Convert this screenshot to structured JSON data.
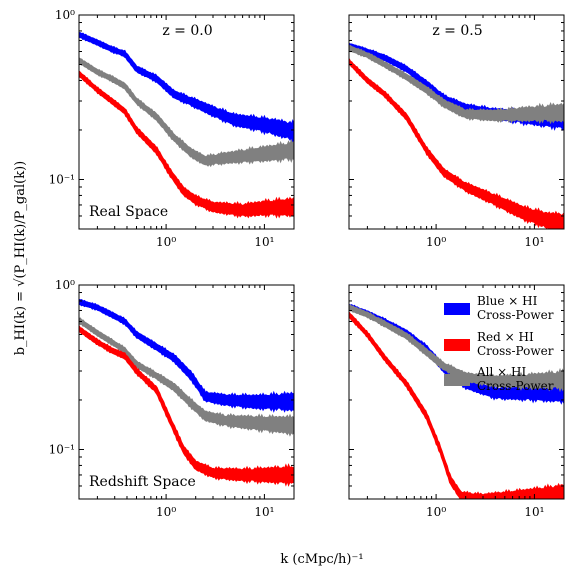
{
  "figure": {
    "ylabel": "b_HI(k) = √(P_HI(k)/P_gal(k))",
    "xlabel": "k (cMpc/h)⁻¹"
  },
  "chart_data": [
    {
      "type": "line",
      "panel_title": "z = 0.0",
      "panel_note": "Real Space",
      "xscale": "log",
      "yscale": "log",
      "xlim": [
        0.13,
        20
      ],
      "ylim": [
        0.05,
        1.0
      ],
      "x_tick_labels": [
        "10⁰",
        "10¹"
      ],
      "y_tick_labels": [
        "10⁰",
        "10⁻¹"
      ],
      "series": [
        {
          "color": "#0000ff",
          "points": [
            [
              0.13,
              0.76
            ],
            [
              0.2,
              0.68
            ],
            [
              0.28,
              0.62
            ],
            [
              0.38,
              0.58
            ],
            [
              0.5,
              0.47
            ],
            [
              0.8,
              0.41
            ],
            [
              1.2,
              0.33
            ],
            [
              2,
              0.29
            ],
            [
              3,
              0.26
            ],
            [
              5,
              0.23
            ],
            [
              8,
              0.22
            ],
            [
              12,
              0.21
            ],
            [
              20,
              0.195
            ]
          ]
        },
        {
          "color": "#808080",
          "points": [
            [
              0.13,
              0.53
            ],
            [
              0.2,
              0.45
            ],
            [
              0.28,
              0.41
            ],
            [
              0.38,
              0.37
            ],
            [
              0.5,
              0.3
            ],
            [
              0.8,
              0.24
            ],
            [
              1.2,
              0.18
            ],
            [
              1.8,
              0.145
            ],
            [
              2.5,
              0.13
            ],
            [
              4,
              0.135
            ],
            [
              7,
              0.14
            ],
            [
              12,
              0.145
            ],
            [
              20,
              0.15
            ]
          ]
        },
        {
          "color": "#ff0000",
          "points": [
            [
              0.13,
              0.44
            ],
            [
              0.2,
              0.35
            ],
            [
              0.28,
              0.3
            ],
            [
              0.38,
              0.26
            ],
            [
              0.5,
              0.2
            ],
            [
              0.8,
              0.15
            ],
            [
              1.1,
              0.11
            ],
            [
              1.5,
              0.085
            ],
            [
              2,
              0.075
            ],
            [
              3,
              0.068
            ],
            [
              6,
              0.065
            ],
            [
              10,
              0.067
            ],
            [
              20,
              0.068
            ]
          ]
        }
      ]
    },
    {
      "type": "line",
      "panel_title": "z = 0.5",
      "panel_note": "",
      "xscale": "log",
      "yscale": "log",
      "xlim": [
        0.13,
        20
      ],
      "ylim": [
        0.05,
        1.0
      ],
      "x_tick_labels": [
        "10⁰",
        "10¹"
      ],
      "y_tick_labels": [],
      "series": [
        {
          "color": "#0000ff",
          "points": [
            [
              0.13,
              0.65
            ],
            [
              0.2,
              0.6
            ],
            [
              0.3,
              0.55
            ],
            [
              0.5,
              0.47
            ],
            [
              0.8,
              0.38
            ],
            [
              1.2,
              0.31
            ],
            [
              2,
              0.27
            ],
            [
              4,
              0.25
            ],
            [
              8,
              0.24
            ],
            [
              20,
              0.23
            ]
          ]
        },
        {
          "color": "#808080",
          "points": [
            [
              0.13,
              0.63
            ],
            [
              0.2,
              0.57
            ],
            [
              0.3,
              0.5
            ],
            [
              0.5,
              0.42
            ],
            [
              0.8,
              0.35
            ],
            [
              1.2,
              0.29
            ],
            [
              2,
              0.25
            ],
            [
              4,
              0.245
            ],
            [
              8,
              0.25
            ],
            [
              20,
              0.255
            ]
          ]
        },
        {
          "color": "#ff0000",
          "points": [
            [
              0.13,
              0.52
            ],
            [
              0.2,
              0.4
            ],
            [
              0.3,
              0.33
            ],
            [
              0.5,
              0.24
            ],
            [
              0.8,
              0.15
            ],
            [
              1.2,
              0.11
            ],
            [
              2,
              0.09
            ],
            [
              4,
              0.075
            ],
            [
              8,
              0.062
            ],
            [
              14,
              0.056
            ],
            [
              20,
              0.055
            ]
          ]
        }
      ]
    },
    {
      "type": "line",
      "panel_title": "",
      "panel_note": "Redshift Space",
      "xscale": "log",
      "yscale": "log",
      "xlim": [
        0.13,
        20
      ],
      "ylim": [
        0.05,
        1.0
      ],
      "x_tick_labels": [
        "10⁰",
        "10¹"
      ],
      "y_tick_labels": [
        "10⁰",
        "10⁻¹"
      ],
      "series": [
        {
          "color": "#0000ff",
          "points": [
            [
              0.13,
              0.79
            ],
            [
              0.2,
              0.73
            ],
            [
              0.28,
              0.66
            ],
            [
              0.38,
              0.6
            ],
            [
              0.5,
              0.5
            ],
            [
              0.8,
              0.42
            ],
            [
              1.2,
              0.36
            ],
            [
              1.8,
              0.28
            ],
            [
              2.5,
              0.21
            ],
            [
              4,
              0.2
            ],
            [
              8,
              0.195
            ],
            [
              20,
              0.195
            ]
          ]
        },
        {
          "color": "#808080",
          "points": [
            [
              0.13,
              0.61
            ],
            [
              0.2,
              0.51
            ],
            [
              0.28,
              0.45
            ],
            [
              0.38,
              0.4
            ],
            [
              0.5,
              0.33
            ],
            [
              0.8,
              0.28
            ],
            [
              1.2,
              0.24
            ],
            [
              1.8,
              0.19
            ],
            [
              2.5,
              0.16
            ],
            [
              4,
              0.15
            ],
            [
              8,
              0.145
            ],
            [
              20,
              0.14
            ]
          ]
        },
        {
          "color": "#ff0000",
          "points": [
            [
              0.13,
              0.54
            ],
            [
              0.2,
              0.45
            ],
            [
              0.28,
              0.4
            ],
            [
              0.38,
              0.37
            ],
            [
              0.5,
              0.3
            ],
            [
              0.8,
              0.23
            ],
            [
              1.1,
              0.15
            ],
            [
              1.5,
              0.1
            ],
            [
              2,
              0.08
            ],
            [
              3,
              0.072
            ],
            [
              6,
              0.07
            ],
            [
              10,
              0.07
            ],
            [
              20,
              0.07
            ]
          ]
        }
      ]
    },
    {
      "type": "line",
      "panel_title": "",
      "panel_note": "",
      "xscale": "log",
      "yscale": "log",
      "xlim": [
        0.13,
        20
      ],
      "ylim": [
        0.05,
        1.0
      ],
      "x_tick_labels": [
        "10⁰",
        "10¹"
      ],
      "y_tick_labels": [],
      "series": [
        {
          "color": "#0000ff",
          "points": [
            [
              0.13,
              0.74
            ],
            [
              0.2,
              0.67
            ],
            [
              0.3,
              0.6
            ],
            [
              0.5,
              0.51
            ],
            [
              0.8,
              0.41
            ],
            [
              1.2,
              0.31
            ],
            [
              2,
              0.25
            ],
            [
              4,
              0.22
            ],
            [
              8,
              0.22
            ],
            [
              20,
              0.22
            ]
          ]
        },
        {
          "color": "#808080",
          "points": [
            [
              0.13,
              0.73
            ],
            [
              0.2,
              0.66
            ],
            [
              0.3,
              0.58
            ],
            [
              0.5,
              0.49
            ],
            [
              0.8,
              0.39
            ],
            [
              1.2,
              0.32
            ],
            [
              2,
              0.275
            ],
            [
              4,
              0.26
            ],
            [
              8,
              0.26
            ],
            [
              20,
              0.265
            ]
          ]
        },
        {
          "color": "#ff0000",
          "points": [
            [
              0.13,
              0.66
            ],
            [
              0.2,
              0.5
            ],
            [
              0.3,
              0.36
            ],
            [
              0.5,
              0.25
            ],
            [
              0.8,
              0.16
            ],
            [
              1.1,
              0.1
            ],
            [
              1.4,
              0.065
            ],
            [
              1.8,
              0.052
            ],
            [
              3,
              0.05
            ],
            [
              8,
              0.052
            ],
            [
              20,
              0.054
            ]
          ]
        }
      ]
    }
  ],
  "legend": {
    "placement": "upper-right of bottom-right panel",
    "entries": [
      {
        "color": "#0000ff",
        "line1": "Blue × HI",
        "line2": "Cross-Power"
      },
      {
        "color": "#ff0000",
        "line1": "Red × HI",
        "line2": "Cross-Power"
      },
      {
        "color": "#808080",
        "line1": "All × HI",
        "line2": "Cross-Power"
      }
    ]
  }
}
